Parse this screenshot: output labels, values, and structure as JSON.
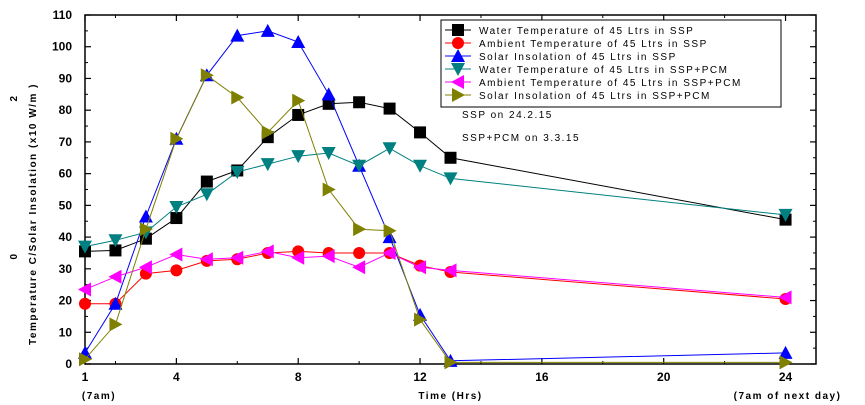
{
  "chart_data": {
    "type": "line",
    "xlabel": "Time (Hrs)",
    "x_start_note": "(7am)",
    "x_end_note": "(7am of next day)",
    "ylabel": "Temperature C/Solar Insolation (x10 W/m )",
    "ylabel_degree_mark": "0",
    "ylabel_superscript": "2",
    "xlim": [
      1,
      25
    ],
    "ylim": [
      0,
      110
    ],
    "x_ticks": [
      1,
      4,
      8,
      12,
      16,
      20,
      24
    ],
    "y_ticks": [
      0,
      10,
      20,
      30,
      40,
      50,
      60,
      70,
      80,
      90,
      100,
      110
    ],
    "notes": [
      "SSP on 24.2.15",
      "SSP+PCM on 3.3.15"
    ],
    "legend_position": "top-right",
    "series": [
      {
        "name": "Water Temperature of 45  Ltrs in SSP",
        "color": "#000000",
        "marker": "square",
        "points": [
          [
            1,
            35.5
          ],
          [
            2,
            35.8
          ],
          [
            3,
            39.5
          ],
          [
            4,
            46
          ],
          [
            5,
            57.5
          ],
          [
            6,
            61
          ],
          [
            7,
            71.5
          ],
          [
            8,
            78.5
          ],
          [
            9,
            82
          ],
          [
            10,
            82.5
          ],
          [
            11,
            80.5
          ],
          [
            12,
            73
          ],
          [
            13,
            65
          ],
          [
            24,
            45.5
          ]
        ]
      },
      {
        "name": "Ambient Temperature of 45 Ltrs in SSP",
        "color": "#ff0000",
        "marker": "circle",
        "points": [
          [
            1,
            19
          ],
          [
            2,
            19
          ],
          [
            3,
            28.5
          ],
          [
            4,
            29.5
          ],
          [
            5,
            32.5
          ],
          [
            6,
            33
          ],
          [
            7,
            35
          ],
          [
            8,
            35.5
          ],
          [
            9,
            35
          ],
          [
            10,
            35
          ],
          [
            11,
            35
          ],
          [
            12,
            31
          ],
          [
            13,
            29
          ],
          [
            24,
            20.5
          ]
        ]
      },
      {
        "name": "Solar Insolation of 45 Ltrs in SSP",
        "color": "#0000ff",
        "marker": "triangle-up",
        "points": [
          [
            1,
            3.5
          ],
          [
            2,
            19
          ],
          [
            3,
            46.5
          ],
          [
            4,
            71
          ],
          [
            5,
            91
          ],
          [
            6,
            103.5
          ],
          [
            7,
            105
          ],
          [
            8,
            101.5
          ],
          [
            9,
            85
          ],
          [
            10,
            62.5
          ],
          [
            11,
            40
          ],
          [
            12,
            15.5
          ],
          [
            13,
            1
          ],
          [
            24,
            3.5
          ]
        ]
      },
      {
        "name": "Water Temperature of 45 Ltrs in SSP+PCM",
        "color": "#008080",
        "marker": "triangle-down",
        "points": [
          [
            1,
            37
          ],
          [
            2,
            39
          ],
          [
            3,
            41.5
          ],
          [
            4,
            49.5
          ],
          [
            5,
            53.5
          ],
          [
            6,
            60.5
          ],
          [
            7,
            63
          ],
          [
            8,
            65.5
          ],
          [
            9,
            66.5
          ],
          [
            10,
            62.5
          ],
          [
            11,
            68
          ],
          [
            12,
            62.5
          ],
          [
            13,
            58.5
          ],
          [
            24,
            47
          ]
        ]
      },
      {
        "name": "Ambient Temperature of 45 Ltrs in SSP+PCM",
        "color": "#ff00ff",
        "marker": "triangle-left",
        "points": [
          [
            1,
            23.5
          ],
          [
            2,
            27.5
          ],
          [
            3,
            30.5
          ],
          [
            4,
            34.5
          ],
          [
            5,
            33
          ],
          [
            6,
            33.5
          ],
          [
            7,
            35.5
          ],
          [
            8,
            33.5
          ],
          [
            9,
            34
          ],
          [
            10,
            30.5
          ],
          [
            11,
            35
          ],
          [
            12,
            30.5
          ],
          [
            13,
            29.5
          ],
          [
            24,
            21
          ]
        ]
      },
      {
        "name": "Solar Insolation of 45 Ltrs in SSP+PCM",
        "color": "#808000",
        "marker": "triangle-right",
        "points": [
          [
            1,
            1.5
          ],
          [
            2,
            12.5
          ],
          [
            3,
            42.5
          ],
          [
            4,
            71
          ],
          [
            5,
            91
          ],
          [
            6,
            84
          ],
          [
            7,
            73
          ],
          [
            8,
            83
          ],
          [
            9,
            55
          ],
          [
            10,
            42.5
          ],
          [
            11,
            42
          ],
          [
            12,
            14
          ],
          [
            13,
            0.5
          ],
          [
            24,
            0.5
          ]
        ]
      }
    ]
  }
}
